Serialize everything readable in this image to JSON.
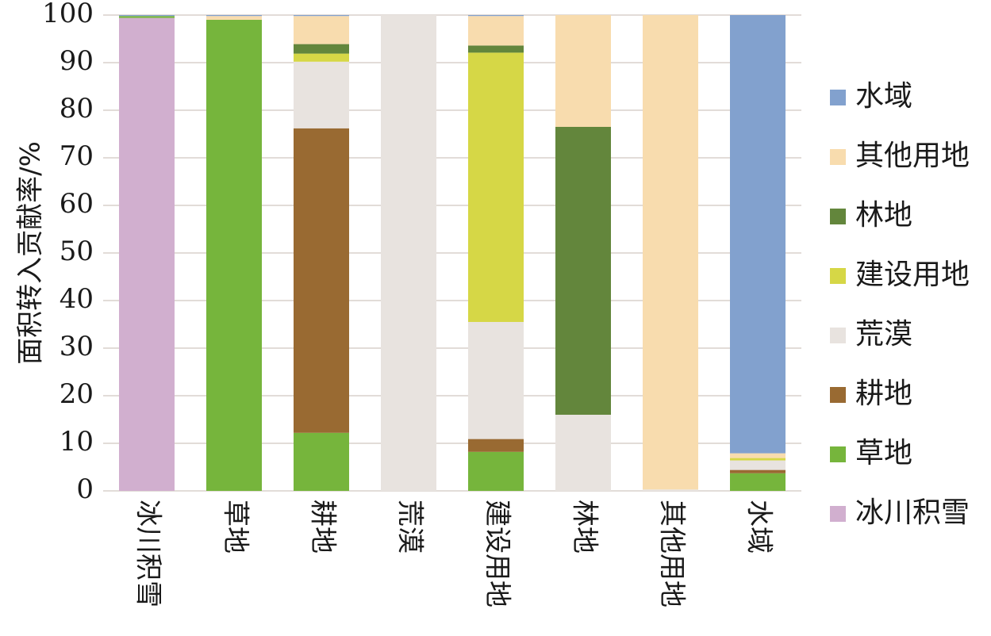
{
  "chart_data": {
    "type": "bar",
    "stacked": true,
    "title": "",
    "xlabel": "",
    "ylabel": "面积转入贡献率/%",
    "ylim": [
      0,
      100
    ],
    "yticks": [
      0,
      10,
      20,
      30,
      40,
      50,
      60,
      70,
      80,
      90,
      100
    ],
    "grid": true,
    "legend_position": "right",
    "categories": [
      "冰川积雪",
      "草地",
      "耕地",
      "荒漠",
      "建设用地",
      "林地",
      "其他用地",
      "水域"
    ],
    "series": [
      {
        "name": "冰川积雪",
        "color": "#d1afcf",
        "values": [
          99.4,
          0,
          0,
          0,
          0,
          0,
          0,
          0
        ]
      },
      {
        "name": "草地",
        "color": "#76b53c",
        "values": [
          0.4,
          99.0,
          12.2,
          0,
          8.2,
          0,
          0,
          3.7
        ]
      },
      {
        "name": "耕地",
        "color": "#996a32",
        "values": [
          0,
          0,
          64.0,
          0,
          2.7,
          0,
          0,
          0.7
        ]
      },
      {
        "name": "荒漠",
        "color": "#e8e3df",
        "values": [
          0,
          0,
          14.0,
          100,
          24.6,
          16.0,
          0.3,
          2.0
        ]
      },
      {
        "name": "建设用地",
        "color": "#d6d746",
        "values": [
          0,
          0,
          1.7,
          0,
          56.6,
          0,
          0,
          0.5
        ]
      },
      {
        "name": "林地",
        "color": "#63863c",
        "values": [
          0,
          0,
          2.0,
          0,
          1.5,
          60.5,
          0,
          0
        ]
      },
      {
        "name": "其他用地",
        "color": "#f8dcae",
        "values": [
          0,
          0.8,
          5.9,
          0,
          6.2,
          23.5,
          99.7,
          1.0
        ]
      },
      {
        "name": "水域",
        "color": "#82a1ce",
        "values": [
          0.2,
          0.2,
          0.2,
          0,
          0.2,
          0,
          0,
          92.1
        ]
      }
    ],
    "legend_order": [
      "水域",
      "其他用地",
      "林地",
      "建设用地",
      "荒漠",
      "耕地",
      "草地",
      "冰川积雪"
    ]
  }
}
